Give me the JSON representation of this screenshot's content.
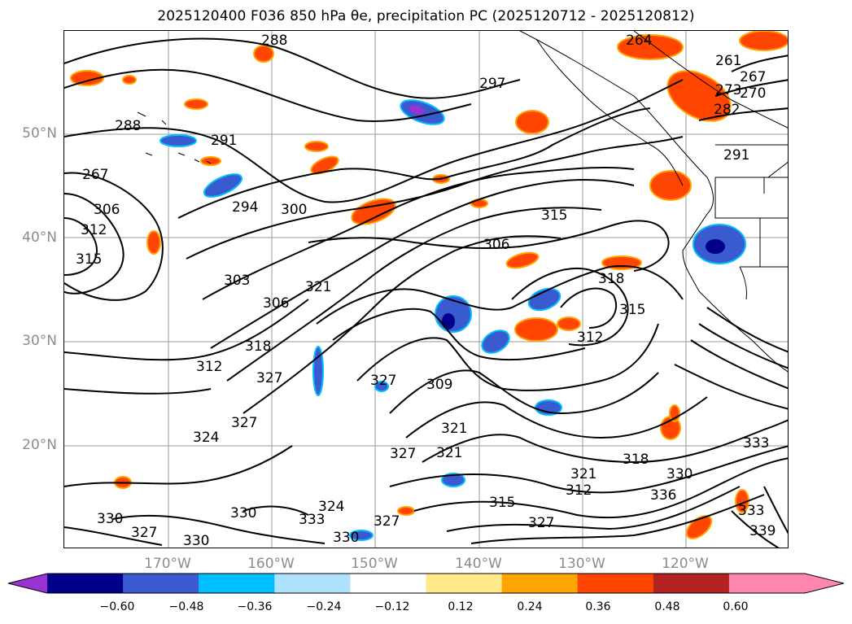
{
  "title": "2025120400 F036 850 hPa θe, precipitation PC (2025120712 - 2025120812)",
  "lat_labels": [
    "50°N",
    "40°N",
    "30°N",
    "20°N"
  ],
  "lon_labels": [
    "170°W",
    "160°W",
    "150°W",
    "140°W",
    "130°W",
    "120°W"
  ],
  "contour_labels": [
    "288",
    "297",
    "264",
    "261",
    "267",
    "273",
    "270",
    "282",
    "288",
    "291",
    "291",
    "267",
    "294",
    "300",
    "315",
    "306",
    "312",
    "315",
    "306",
    "303",
    "306",
    "321",
    "318",
    "315",
    "312",
    "318",
    "312",
    "327",
    "327",
    "309",
    "324",
    "327",
    "321",
    "321",
    "327",
    "321",
    "318",
    "330",
    "333",
    "312",
    "336",
    "315",
    "327",
    "330",
    "327",
    "330",
    "333",
    "324",
    "327",
    "330",
    "330",
    "333",
    "339"
  ],
  "colorbar": {
    "ticks": [
      "−0.60",
      "−0.48",
      "−0.36",
      "−0.24",
      "−0.12",
      "0.12",
      "0.24",
      "0.36",
      "0.48",
      "0.60"
    ],
    "colors": [
      "#9a33d3",
      "#00008b",
      "#3a5bd0",
      "#00bfff",
      "#aee2ff",
      "#ffffff",
      "#ffe98a",
      "#ffa500",
      "#ff4500",
      "#b22222",
      "#ff86b0",
      "#ff86b0"
    ],
    "under_color": "#9a33d3",
    "over_color": "#ff86b0"
  }
}
